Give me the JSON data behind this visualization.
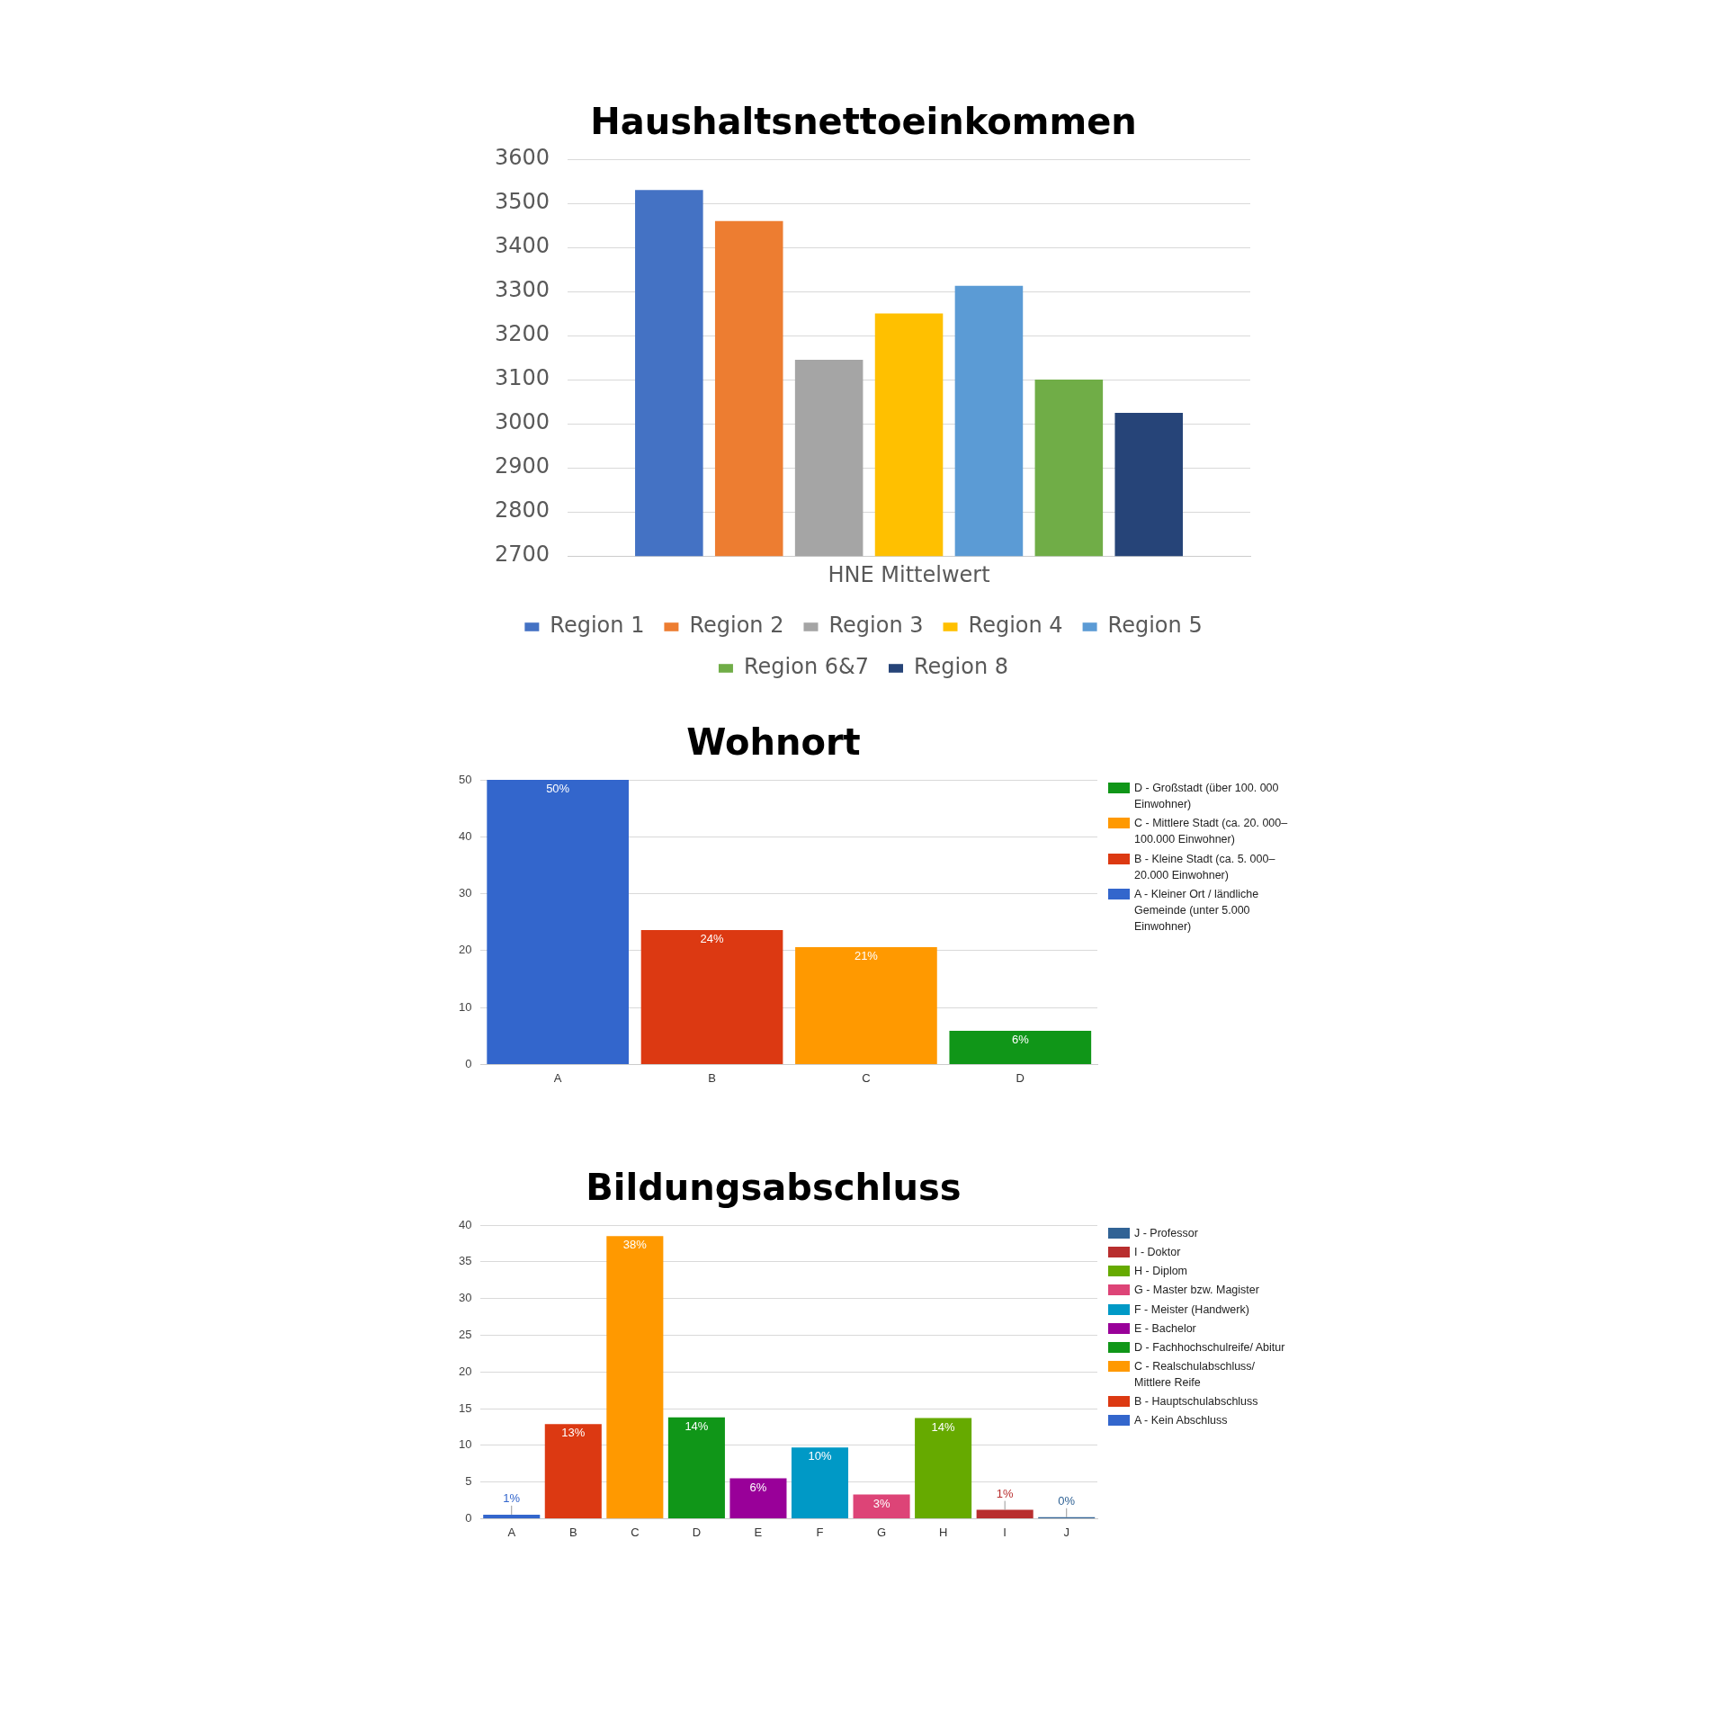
{
  "chart_data": [
    {
      "type": "bar",
      "title": "Haushaltsnettoeinkommen",
      "categories": [
        "HNE Mittelwert"
      ],
      "ylim": [
        2700,
        3600
      ],
      "yticks": [
        2700,
        2800,
        2900,
        3000,
        3100,
        3200,
        3300,
        3400,
        3500,
        3600
      ],
      "grid": "y",
      "legend": "bottom",
      "series": [
        {
          "name": "Region 1",
          "color": "#4472c4",
          "values": [
            3530
          ]
        },
        {
          "name": "Region 2",
          "color": "#ed7d31",
          "values": [
            3460
          ]
        },
        {
          "name": "Region 3",
          "color": "#a5a5a5",
          "values": [
            3145
          ]
        },
        {
          "name": "Region 4",
          "color": "#ffc000",
          "values": [
            3250
          ]
        },
        {
          "name": "Region 5",
          "color": "#5b9bd5",
          "values": [
            3313
          ]
        },
        {
          "name": "Region 6&7",
          "color": "#70ad47",
          "values": [
            3100
          ]
        },
        {
          "name": "Region 8",
          "color": "#264478",
          "values": [
            3025
          ]
        }
      ]
    },
    {
      "type": "bar",
      "title": "Wohnort",
      "categories": [
        "A",
        "B",
        "C",
        "D"
      ],
      "ylim": [
        0,
        50
      ],
      "yticks": [
        0,
        10,
        20,
        30,
        40,
        50
      ],
      "grid": "y",
      "legend": "right",
      "series": [
        {
          "name": "D - Großstadt (über 100. 000 Einwohner)",
          "color": "#109618",
          "values": [
            null,
            null,
            null,
            5.9
          ],
          "value_labels": [
            null,
            null,
            null,
            "6%"
          ]
        },
        {
          "name": "C - Mittlere Stadt (ca. 20. 000–100.000 Einwohner)",
          "color": "#ff9900",
          "values": [
            null,
            null,
            20.6,
            null
          ],
          "value_labels": [
            null,
            null,
            "21%",
            null
          ]
        },
        {
          "name": "B - Kleine Stadt (ca. 5. 000–20.000 Einwohner)",
          "color": "#dc3912",
          "values": [
            null,
            23.6,
            null,
            null
          ],
          "value_labels": [
            null,
            "24%",
            null,
            null
          ]
        },
        {
          "name": "A - Kleiner Ort / ländliche Gemeinde (unter 5.000 Einwohner)",
          "color": "#3366cc",
          "values": [
            50,
            null,
            null,
            null
          ],
          "value_labels": [
            "50%",
            null,
            null,
            null
          ]
        }
      ]
    },
    {
      "type": "bar",
      "title": "Bildungsabschluss",
      "categories": [
        "A",
        "B",
        "C",
        "D",
        "E",
        "F",
        "G",
        "H",
        "I",
        "J"
      ],
      "ylim": [
        0,
        40
      ],
      "yticks": [
        0,
        5,
        10,
        15,
        20,
        25,
        30,
        35,
        40
      ],
      "grid": "y",
      "legend": "right",
      "series": [
        {
          "name": "J - Professor",
          "color": "#316395",
          "values": [
            null,
            null,
            null,
            null,
            null,
            null,
            null,
            null,
            null,
            0.2
          ],
          "value_labels": [
            null,
            null,
            null,
            null,
            null,
            null,
            null,
            null,
            null,
            "0%"
          ]
        },
        {
          "name": "I - Doktor",
          "color": "#b82e2e",
          "values": [
            null,
            null,
            null,
            null,
            null,
            null,
            null,
            null,
            1.2,
            null
          ],
          "value_labels": [
            null,
            null,
            null,
            null,
            null,
            null,
            null,
            null,
            "1%",
            null
          ]
        },
        {
          "name": "H - Diplom",
          "color": "#66aa00",
          "values": [
            null,
            null,
            null,
            null,
            null,
            null,
            null,
            13.7,
            null,
            null
          ],
          "value_labels": [
            null,
            null,
            null,
            null,
            null,
            null,
            null,
            "14%",
            null,
            null
          ]
        },
        {
          "name": "G - Master bzw. Magister",
          "color": "#dd4477",
          "values": [
            null,
            null,
            null,
            null,
            null,
            null,
            3.3,
            null,
            null,
            null
          ],
          "value_labels": [
            null,
            null,
            null,
            null,
            null,
            null,
            "3%",
            null,
            null,
            null
          ]
        },
        {
          "name": "F - Meister (Handwerk)",
          "color": "#0099c6",
          "values": [
            null,
            null,
            null,
            null,
            null,
            9.7,
            null,
            null,
            null,
            null
          ],
          "value_labels": [
            null,
            null,
            null,
            null,
            null,
            "10%",
            null,
            null,
            null,
            null
          ]
        },
        {
          "name": "E - Bachelor",
          "color": "#990099",
          "values": [
            null,
            null,
            null,
            null,
            5.5,
            null,
            null,
            null,
            null,
            null
          ],
          "value_labels": [
            null,
            null,
            null,
            null,
            "6%",
            null,
            null,
            null,
            null,
            null
          ]
        },
        {
          "name": "D - Fachhochschulreife/ Abitur",
          "color": "#109618",
          "values": [
            null,
            null,
            null,
            13.8,
            null,
            null,
            null,
            null,
            null,
            null
          ],
          "value_labels": [
            null,
            null,
            null,
            "14%",
            null,
            null,
            null,
            null,
            null,
            null
          ]
        },
        {
          "name": "C - Realschulabschluss/ Mittlere Reife",
          "color": "#ff9900",
          "values": [
            null,
            null,
            38.5,
            null,
            null,
            null,
            null,
            null,
            null,
            null
          ],
          "value_labels": [
            null,
            null,
            "38%",
            null,
            null,
            null,
            null,
            null,
            null,
            null
          ]
        },
        {
          "name": "B - Hauptschulabschluss",
          "color": "#dc3912",
          "values": [
            null,
            12.9,
            null,
            null,
            null,
            null,
            null,
            null,
            null,
            null
          ],
          "value_labels": [
            null,
            "13%",
            null,
            null,
            null,
            null,
            null,
            null,
            null,
            null
          ]
        },
        {
          "name": "A - Kein Abschluss",
          "color": "#3366cc",
          "values": [
            0.55,
            null,
            null,
            null,
            null,
            null,
            null,
            null,
            null,
            null
          ],
          "value_labels": [
            "1%",
            null,
            null,
            null,
            null,
            null,
            null,
            null,
            null,
            null
          ]
        }
      ]
    }
  ]
}
